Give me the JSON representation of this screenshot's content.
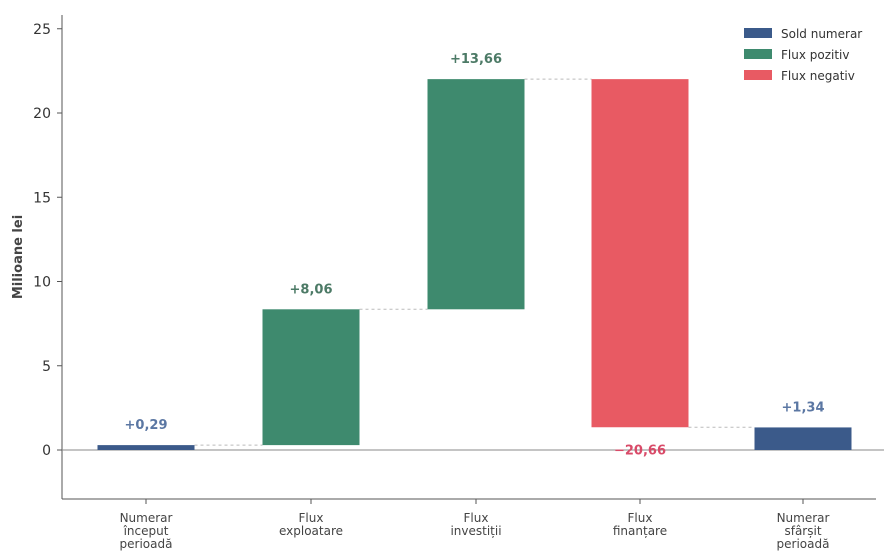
{
  "chart_data": {
    "type": "bar",
    "subtype": "waterfall",
    "ylabel": "Milioane lei",
    "ylim": [
      -3,
      25
    ],
    "yticks": [
      "0",
      "5",
      "10",
      "15",
      "20",
      "25"
    ],
    "grid": false,
    "legend_position": "top-right",
    "colors": {
      "sold": "#3b5a8a",
      "positive": "#3e8a6e",
      "negative": "#e85a63",
      "sold_label": "#5b77a3",
      "positive_label": "#4c7a66",
      "negative_label": "#d94a68"
    },
    "legend": [
      {
        "label": "Sold numerar",
        "kind": "sold"
      },
      {
        "label": "Flux pozitiv",
        "kind": "positive"
      },
      {
        "label": "Flux negativ",
        "kind": "negative"
      }
    ],
    "categories": [
      [
        "Numerar",
        "început",
        "perioadă"
      ],
      [
        "Flux",
        "exploatare"
      ],
      [
        "Flux",
        "investiții"
      ],
      [
        "Flux",
        "finanțare"
      ],
      [
        "Numerar",
        "sfârșit",
        "perioadă"
      ]
    ],
    "bars": [
      {
        "kind": "sold",
        "start": 0,
        "end": 0.29,
        "value_label": "+0,29"
      },
      {
        "kind": "positive",
        "start": 0.29,
        "end": 8.35,
        "value_label": "+8,06"
      },
      {
        "kind": "positive",
        "start": 8.35,
        "end": 22.01,
        "value_label": "+13,66"
      },
      {
        "kind": "negative",
        "start": 22.01,
        "end": 1.35,
        "value_label": "−20,66"
      },
      {
        "kind": "sold",
        "start": 0,
        "end": 1.34,
        "value_label": "+1,34"
      }
    ]
  }
}
